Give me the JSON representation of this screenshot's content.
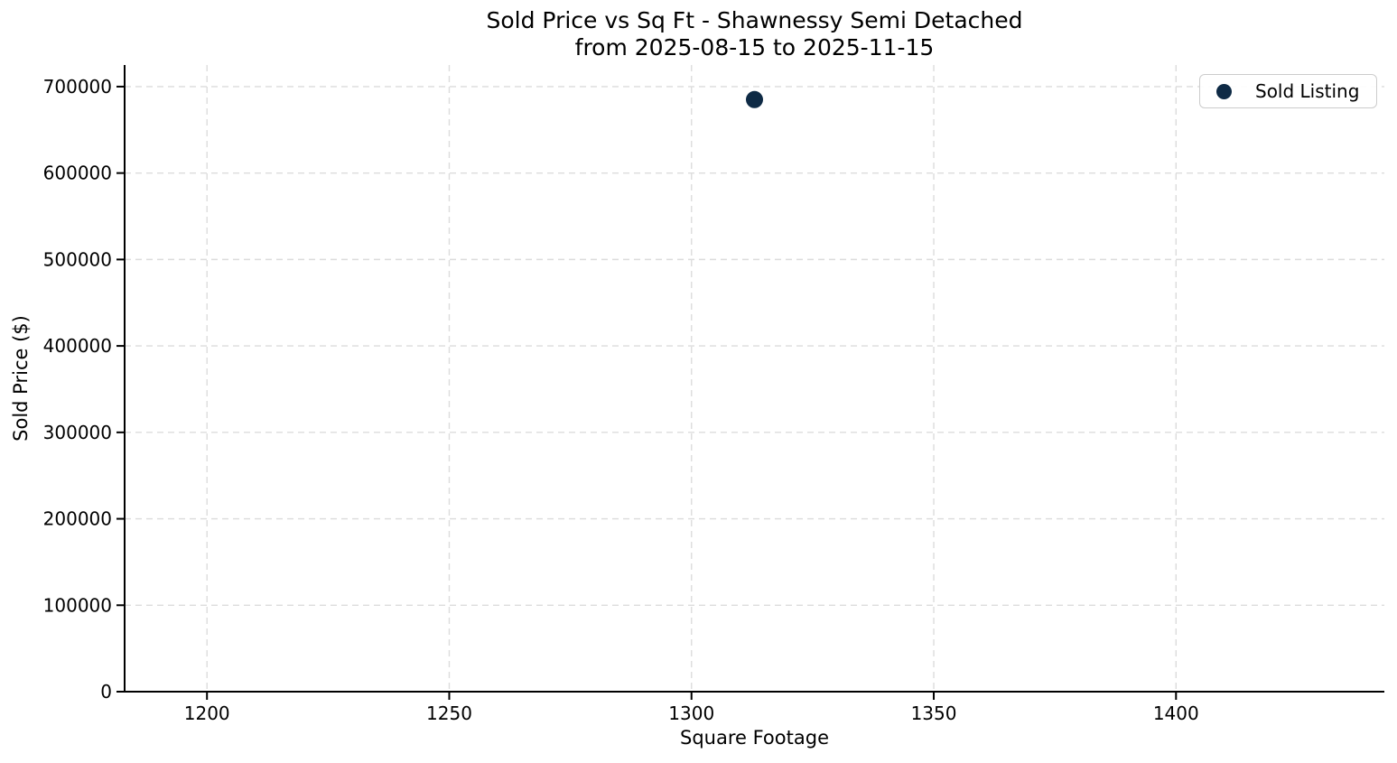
{
  "chart_data": {
    "type": "scatter",
    "title_line1": "Sold Price vs Sq Ft - Shawnessy Semi Detached",
    "title_line2": "from 2025-08-15 to 2025-11-15",
    "xlabel": "Square Footage",
    "ylabel": "Sold Price ($)",
    "xlim": [
      1183,
      1443
    ],
    "ylim": [
      0,
      725000
    ],
    "x_ticks": [
      1200,
      1250,
      1300,
      1350,
      1400
    ],
    "y_ticks": [
      0,
      100000,
      200000,
      300000,
      400000,
      500000,
      600000,
      700000
    ],
    "grid": true,
    "grid_style": "dashed",
    "legend_position": "upper right",
    "series": [
      {
        "name": "Sold Listing",
        "marker": "circle",
        "color": "#0e2a45",
        "points": [
          {
            "x": 1313,
            "y": 685000
          }
        ]
      }
    ]
  },
  "legend": {
    "entries": [
      {
        "label": "Sold Listing",
        "marker_color": "#0e2a45"
      }
    ]
  },
  "colors": {
    "background": "#ffffff",
    "spine": "#000000",
    "grid": "#dcdcdc",
    "text": "#000000",
    "legend_border": "#cccccc"
  }
}
